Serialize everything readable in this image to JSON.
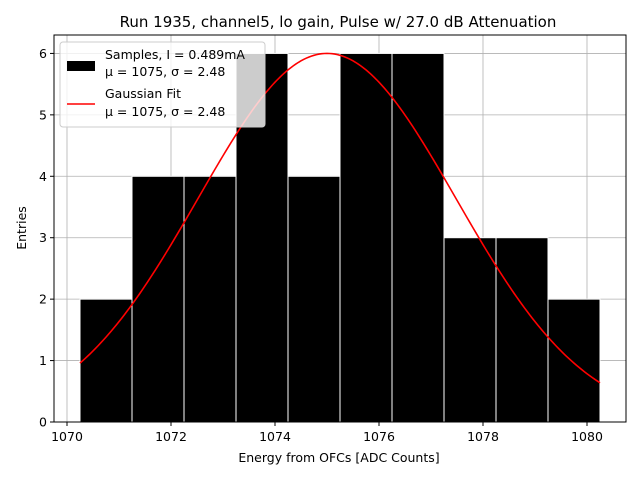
{
  "chart_data": {
    "type": "bar",
    "title": "Run 1935, channel5, lo gain, Pulse w/ 27.0 dB Attenuation",
    "xlabel": "Energy from OFCs [ADC Counts]",
    "ylabel": "Entries",
    "xlim": [
      1069.75,
      1080.75
    ],
    "ylim": [
      0,
      6.3
    ],
    "xticks": [
      1070,
      1072,
      1074,
      1076,
      1078,
      1080
    ],
    "yticks": [
      0,
      1,
      2,
      3,
      4,
      5,
      6
    ],
    "grid": true,
    "legend_position": "upper-left",
    "bins": [
      {
        "left": 1070.25,
        "right": 1071.25,
        "count": 2
      },
      {
        "left": 1071.25,
        "right": 1072.25,
        "count": 4
      },
      {
        "left": 1072.25,
        "right": 1073.25,
        "count": 4
      },
      {
        "left": 1073.25,
        "right": 1074.25,
        "count": 6
      },
      {
        "left": 1074.25,
        "right": 1075.25,
        "count": 4
      },
      {
        "left": 1075.25,
        "right": 1076.25,
        "count": 6
      },
      {
        "left": 1076.25,
        "right": 1077.25,
        "count": 6
      },
      {
        "left": 1077.25,
        "right": 1078.25,
        "count": 3
      },
      {
        "left": 1078.25,
        "right": 1079.25,
        "count": 3
      },
      {
        "left": 1079.25,
        "right": 1080.25,
        "count": 2
      }
    ],
    "gaussian_fit": {
      "name": "Gaussian Fit",
      "mu": 1075,
      "sigma": 2.48,
      "amplitude": 6.0,
      "x_range": [
        1070.25,
        1080.25
      ]
    },
    "legend": [
      {
        "line1": "Samples, I = 0.489mA",
        "line2": "μ = 1075, σ = 2.48",
        "kind": "bar",
        "color": "#000000"
      },
      {
        "line1": "Gaussian Fit",
        "line2": "μ = 1075, σ = 2.48",
        "kind": "line",
        "color": "#ff0000"
      }
    ],
    "colors": {
      "bars": "#000000",
      "bar_edge": "#ffffff",
      "fit": "#ff0000",
      "grid": "#b0b0b0"
    }
  }
}
